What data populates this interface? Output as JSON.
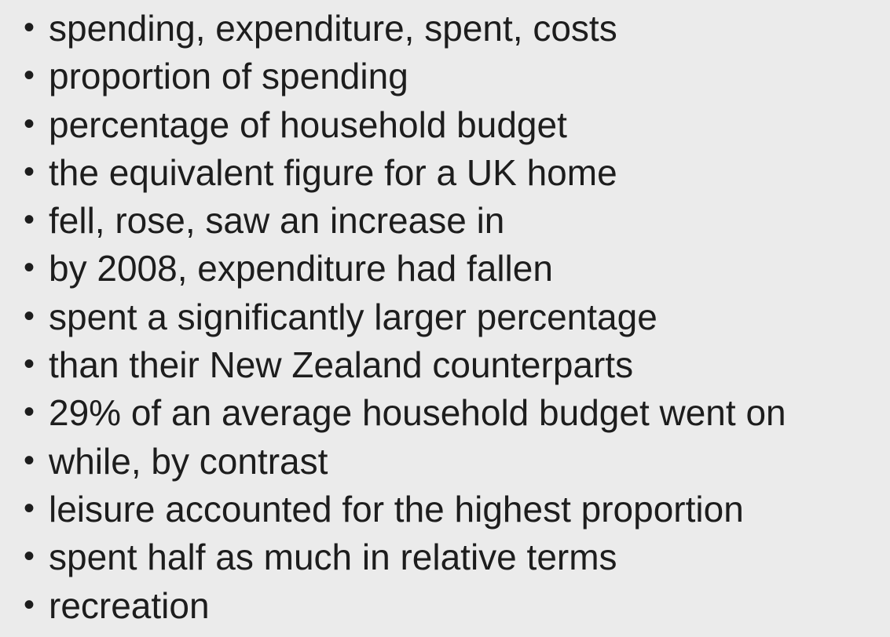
{
  "bullet_symbol": "•",
  "phrases": [
    "spending, expenditure, spent, costs",
    "proportion of spending",
    "percentage of household budget",
    "the equivalent figure for a UK home",
    "fell, rose, saw an increase in",
    "by 2008, expenditure had fallen",
    "spent a significantly larger percentage",
    "than their New Zealand counterparts",
    "29% of an average household budget went on",
    "while, by contrast",
    "leisure accounted for the highest proportion",
    "spent half as much in relative terms",
    "recreation"
  ]
}
